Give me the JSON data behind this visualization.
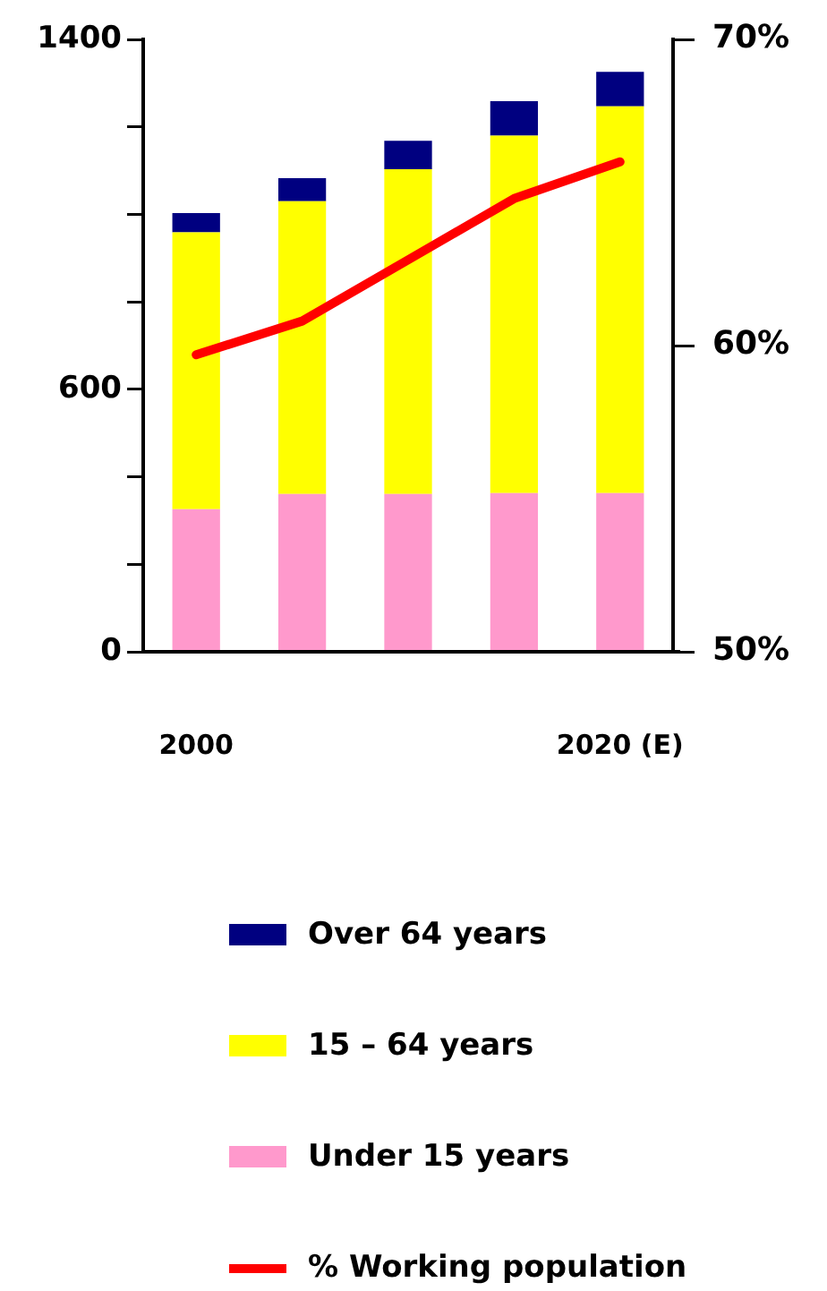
{
  "chart_data": {
    "type": "bar",
    "stacked": true,
    "categories": [
      "2000",
      null,
      null,
      null,
      "2020 (E)"
    ],
    "ylim": [
      0,
      1400
    ],
    "yticks": [
      0,
      {
        "value": 200,
        "label": null
      },
      {
        "value": 400,
        "label": null
      },
      600,
      {
        "value": 800,
        "label": null
      },
      {
        "value": 1000,
        "label": null
      },
      {
        "value": 1200,
        "label": null
      },
      1400
    ],
    "y2lim": [
      50,
      70
    ],
    "y2ticks": [
      {
        "value": 50,
        "label": "50%"
      },
      {
        "value": 60,
        "label": "60%"
      },
      {
        "value": 70,
        "label": "70%"
      }
    ],
    "series": [
      {
        "name": "Under 15 years",
        "color": "#ff99cc",
        "values": [
          326,
          361,
          361,
          363,
          363
        ]
      },
      {
        "name": "15 – 64 years",
        "color": "#ffff00",
        "values": [
          633,
          669,
          742,
          817,
          884
        ]
      },
      {
        "name": "Over 64 years",
        "color": "#000080",
        "values": [
          44,
          53,
          65,
          79,
          79
        ]
      },
      {
        "name": "% Working population",
        "type": "line",
        "axis": "y2",
        "color": "#ff0000",
        "values": [
          59.7,
          60.8,
          62.8,
          64.8,
          66.0
        ]
      }
    ],
    "legend": "bottom",
    "grid": false,
    "marker": "none"
  }
}
